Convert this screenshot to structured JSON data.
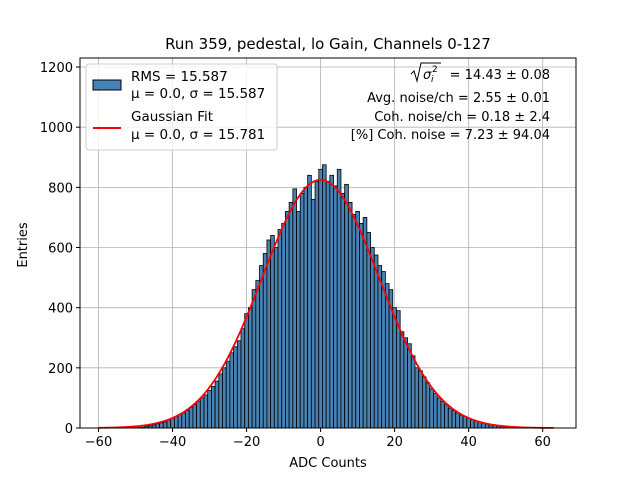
{
  "chart_data": {
    "type": "bar",
    "title": "Run 359, pedestal, lo Gain, Channels 0-127",
    "xlabel": "ADC Counts",
    "ylabel": "Entries",
    "xlim": [
      -65,
      69
    ],
    "ylim": [
      0,
      1230
    ],
    "xticks": [
      -60,
      -40,
      -20,
      0,
      20,
      40,
      60
    ],
    "yticks": [
      0,
      200,
      400,
      600,
      800,
      1000,
      1200
    ],
    "grid": true,
    "bar_color": "#4682b4",
    "bar_edge_color": "#000000",
    "bar_width": 1,
    "histogram": {
      "x": [
        -50,
        -49,
        -48,
        -47,
        -46,
        -45,
        -44,
        -43,
        -42,
        -41,
        -40,
        -39,
        -38,
        -37,
        -36,
        -35,
        -34,
        -33,
        -32,
        -31,
        -30,
        -29,
        -28,
        -27,
        -26,
        -25,
        -24,
        -23,
        -22,
        -21,
        -20,
        -19,
        -18,
        -17,
        -16,
        -15,
        -14,
        -13,
        -12,
        -11,
        -10,
        -9,
        -8,
        -7,
        -6,
        -5,
        -4,
        -3,
        -2,
        -1,
        0,
        1,
        2,
        3,
        4,
        5,
        6,
        7,
        8,
        9,
        10,
        11,
        12,
        13,
        14,
        15,
        16,
        17,
        18,
        19,
        20,
        21,
        22,
        23,
        24,
        25,
        26,
        27,
        28,
        29,
        30,
        31,
        32,
        33,
        34,
        35,
        36,
        37,
        38,
        39,
        40,
        41,
        42,
        43,
        44,
        45,
        46,
        47,
        48,
        49,
        50,
        51,
        52,
        53
      ],
      "values": [
        1,
        2,
        3,
        5,
        7,
        10,
        14,
        17,
        20,
        26,
        32,
        38,
        45,
        50,
        58,
        68,
        78,
        89,
        100,
        110,
        125,
        138,
        156,
        180,
        200,
        222,
        250,
        270,
        290,
        330,
        380,
        400,
        460,
        490,
        540,
        580,
        625,
        640,
        600,
        660,
        680,
        720,
        750,
        795,
        720,
        780,
        800,
        840,
        760,
        820,
        860,
        875,
        820,
        840,
        805,
        860,
        780,
        810,
        750,
        710,
        720,
        680,
        700,
        650,
        600,
        575,
        540,
        520,
        480,
        460,
        400,
        390,
        320,
        300,
        280,
        240,
        200,
        190,
        170,
        150,
        130,
        115,
        100,
        88,
        77,
        66,
        58,
        50,
        43,
        38,
        32,
        27,
        23,
        19,
        16,
        13,
        10,
        8,
        6,
        5,
        4,
        3,
        2,
        1
      ]
    },
    "fit_curve": {
      "name": "Gaussian Fit",
      "color": "#ff0000",
      "x_range": [
        -60,
        63
      ],
      "mean": 0.0,
      "sigma": 15.781,
      "amplitude": 825
    },
    "legend": {
      "placement": "upper-left",
      "entries": [
        {
          "type": "patch",
          "line1": "RMS = 15.587",
          "line2": "μ = 0.0, σ = 15.587"
        },
        {
          "type": "line",
          "line1": "Gaussian Fit",
          "line2": "μ = 0.0, σ = 15.781"
        }
      ]
    },
    "annotations": {
      "placement": "upper-right",
      "sigma_text": " = 14.43 ± 0.08",
      "lines": [
        "Avg. noise/ch = 2.55 ± 0.01",
        "Coh. noise/ch = 0.18 ± 2.4",
        "[%] Coh. noise = 7.23 ± 94.04"
      ]
    }
  }
}
